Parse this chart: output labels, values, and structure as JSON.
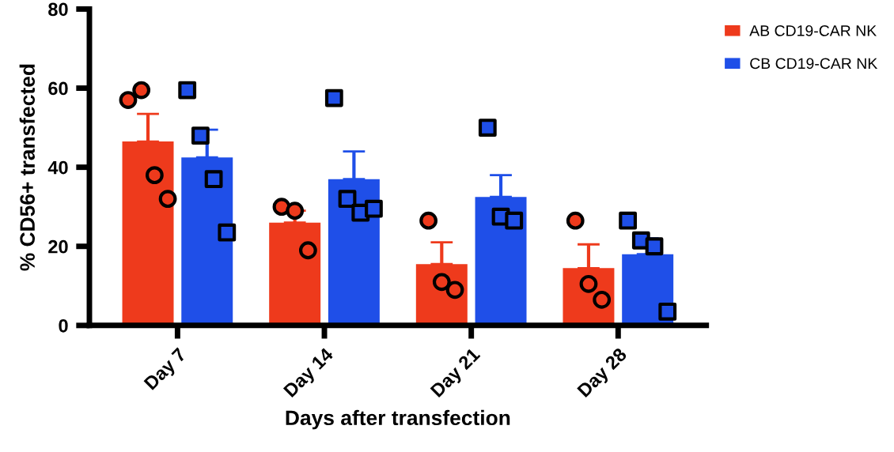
{
  "chart_data": {
    "type": "bar",
    "xlabel": "Days after transfection",
    "ylabel": "% CD56+ transfected",
    "categories": [
      "Day 7",
      "Day 14",
      "Day 21",
      "Day 28"
    ],
    "series": [
      {
        "name": "AB CD19-CAR NK",
        "color": "#ee3a1c",
        "values": [
          46.5,
          26,
          15.5,
          14.5
        ],
        "errors": [
          [
            46.5,
            53.5
          ],
          [
            26,
            29
          ],
          [
            15.5,
            21
          ],
          [
            14.5,
            20.5
          ]
        ]
      },
      {
        "name": "CB CD19-CAR NK",
        "color": "#1f4fe8",
        "values": [
          42.5,
          37,
          32.5,
          18
        ],
        "errors": [
          [
            42.5,
            49.5
          ],
          [
            37,
            44
          ],
          [
            32.5,
            38
          ],
          [
            18,
            22
          ]
        ]
      },
      {
        "type": "scatter",
        "color": "#ee3a1c",
        "marker": "circle",
        "x": [
          "Day 7",
          "Day 7",
          "Day 7",
          "Day 7",
          "Day 14",
          "Day 14",
          "Day 14",
          "Day 21",
          "Day 21",
          "Day 21",
          "Day 28",
          "Day 28",
          "Day 28"
        ],
        "values": [
          57,
          59.5,
          38,
          32,
          30,
          29,
          19,
          26.5,
          11,
          9,
          26.5,
          10.5,
          6.5
        ]
      },
      {
        "type": "scatter",
        "color": "#1f4fe8",
        "marker": "square",
        "x": [
          "Day 7",
          "Day 7",
          "Day 7",
          "Day 7",
          "Day 14",
          "Day 14",
          "Day 14",
          "Day 14",
          "Day 21",
          "Day 21",
          "Day 21",
          "Day 28",
          "Day 28",
          "Day 28",
          "Day 28"
        ],
        "values": [
          59.5,
          48,
          37,
          23.5,
          57.5,
          32,
          28.5,
          29.5,
          50,
          27.5,
          26.5,
          26.5,
          21.5,
          20,
          3.5
        ]
      }
    ],
    "ylim": [
      0,
      80
    ],
    "yticks": [
      0,
      20,
      40,
      60,
      80
    ],
    "legend": "top right",
    "grid": false
  }
}
